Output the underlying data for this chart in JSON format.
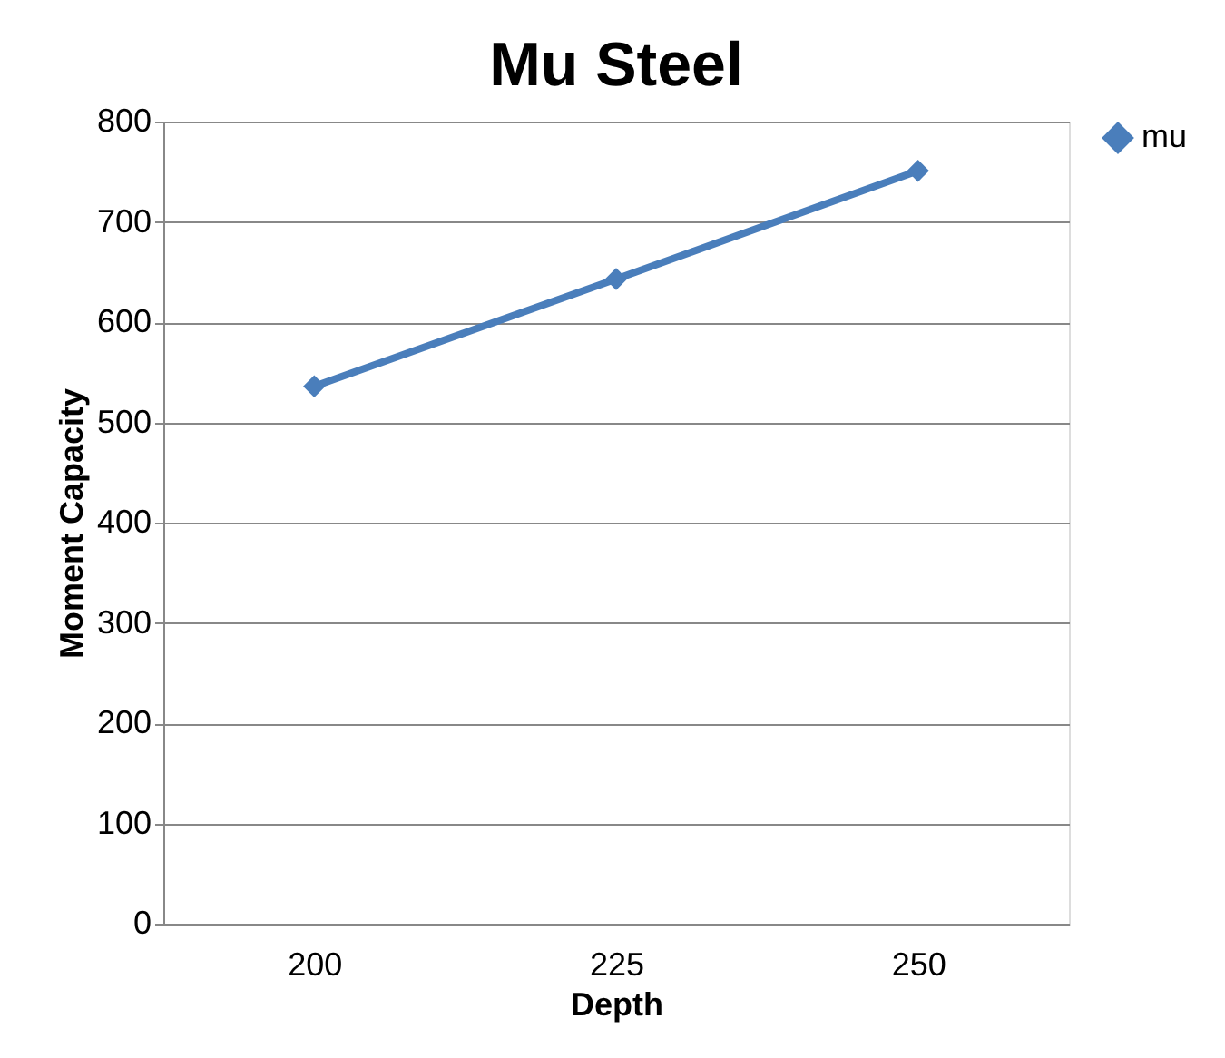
{
  "chart_data": {
    "type": "line",
    "title": "Mu Steel",
    "xlabel": "Depth",
    "ylabel": "Moment Capacity",
    "categories": [
      "200",
      "225",
      "250"
    ],
    "series": [
      {
        "name": "mu",
        "color": "#4a7ebb",
        "values": [
          536,
          643,
          751
        ]
      }
    ],
    "ylim": [
      0,
      800
    ],
    "yticks": [
      0,
      100,
      200,
      300,
      400,
      500,
      600,
      700,
      800
    ],
    "grid": "y",
    "legend": "right",
    "marker": "diamond",
    "line_style": "solid"
  }
}
